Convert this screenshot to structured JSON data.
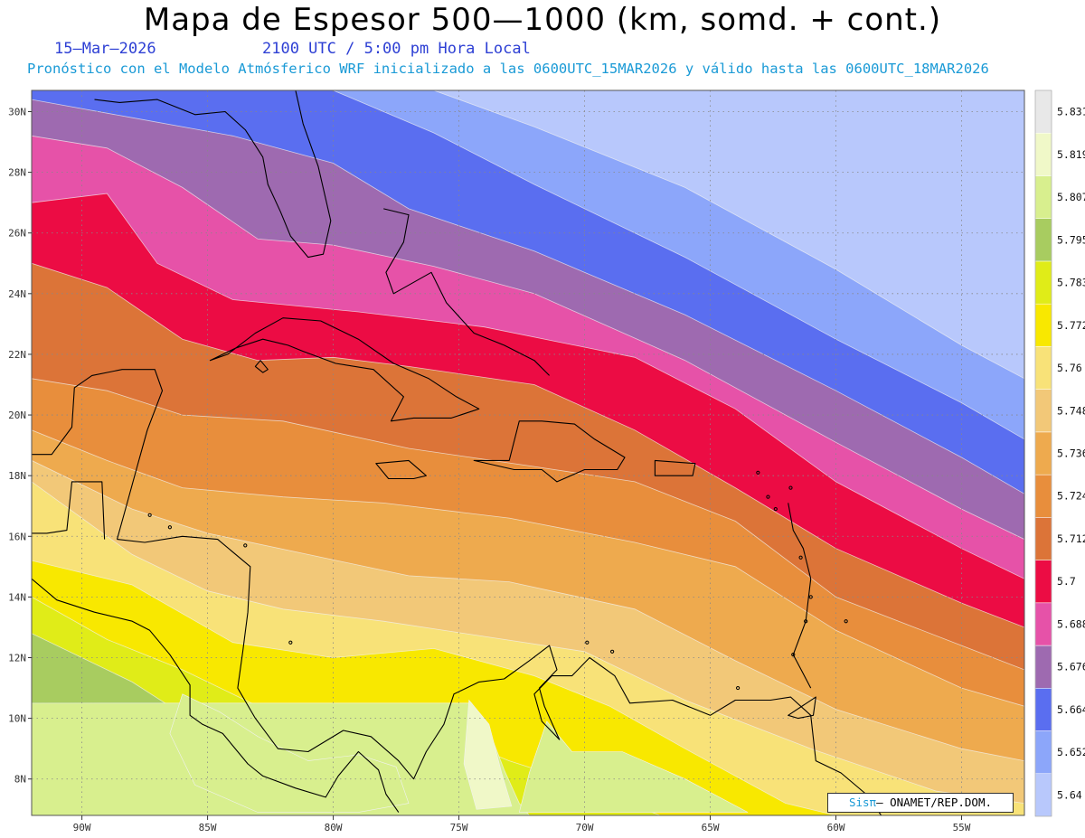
{
  "header": {
    "title": "Mapa de Espesor 500—1000 (km, somd. + cont.)",
    "date": "15—Mar—2026",
    "time": "2100 UTC / 5:00 pm Hora Local",
    "model_line": "Pronostico con el Modelo Atmosferico WRF inicializado a las 0600UTC_15MAR2026 y valido hasta las  0600UTC_18MAR2026",
    "model_line_display": "Pronóstico con el Modelo Atmósferico WRF inicializado a las 0600UTC_15MAR2026 y válido hasta las  0600UTC_18MAR2026"
  },
  "map": {
    "lon_range": [
      -92,
      -52.5
    ],
    "lat_range": [
      6.8,
      30.7
    ],
    "lon_ticks": [
      "90W",
      "85W",
      "80W",
      "75W",
      "70W",
      "65W",
      "60W",
      "55W"
    ],
    "lon_tick_values": [
      -90,
      -85,
      -80,
      -75,
      -70,
      -65,
      -60,
      -55
    ],
    "lat_ticks": [
      "8N",
      "10N",
      "12N",
      "14N",
      "16N",
      "18N",
      "20N",
      "22N",
      "24N",
      "26N",
      "28N",
      "30N"
    ],
    "lat_tick_values": [
      8,
      10,
      12,
      14,
      16,
      18,
      20,
      22,
      24,
      26,
      28,
      30
    ],
    "grid": "dotted",
    "field": "thickness 500-1000 hPa (km)"
  },
  "colorbar": {
    "levels": [
      "5.64",
      "5.652",
      "5.664",
      "5.676",
      "5.688",
      "5.7",
      "5.712",
      "5.724",
      "5.736",
      "5.748",
      "5.76",
      "5.772",
      "5.783",
      "5.795",
      "5.807",
      "5.819",
      "5.831"
    ],
    "colors": [
      "#b8c8fc",
      "#8ca6fa",
      "#5a6ef0",
      "#9e6ab0",
      "#e652a8",
      "#ec0c44",
      "#dc7438",
      "#e88e3c",
      "#eeaa4e",
      "#f2c878",
      "#f8e278",
      "#f8e800",
      "#e0ec18",
      "#a8cc60",
      "#d8ef8e",
      "#f0f8c8",
      "#e8e8e8"
    ]
  },
  "credit": {
    "brand": "Sisπ",
    "org": "– ONAMET/REP.DOM."
  }
}
